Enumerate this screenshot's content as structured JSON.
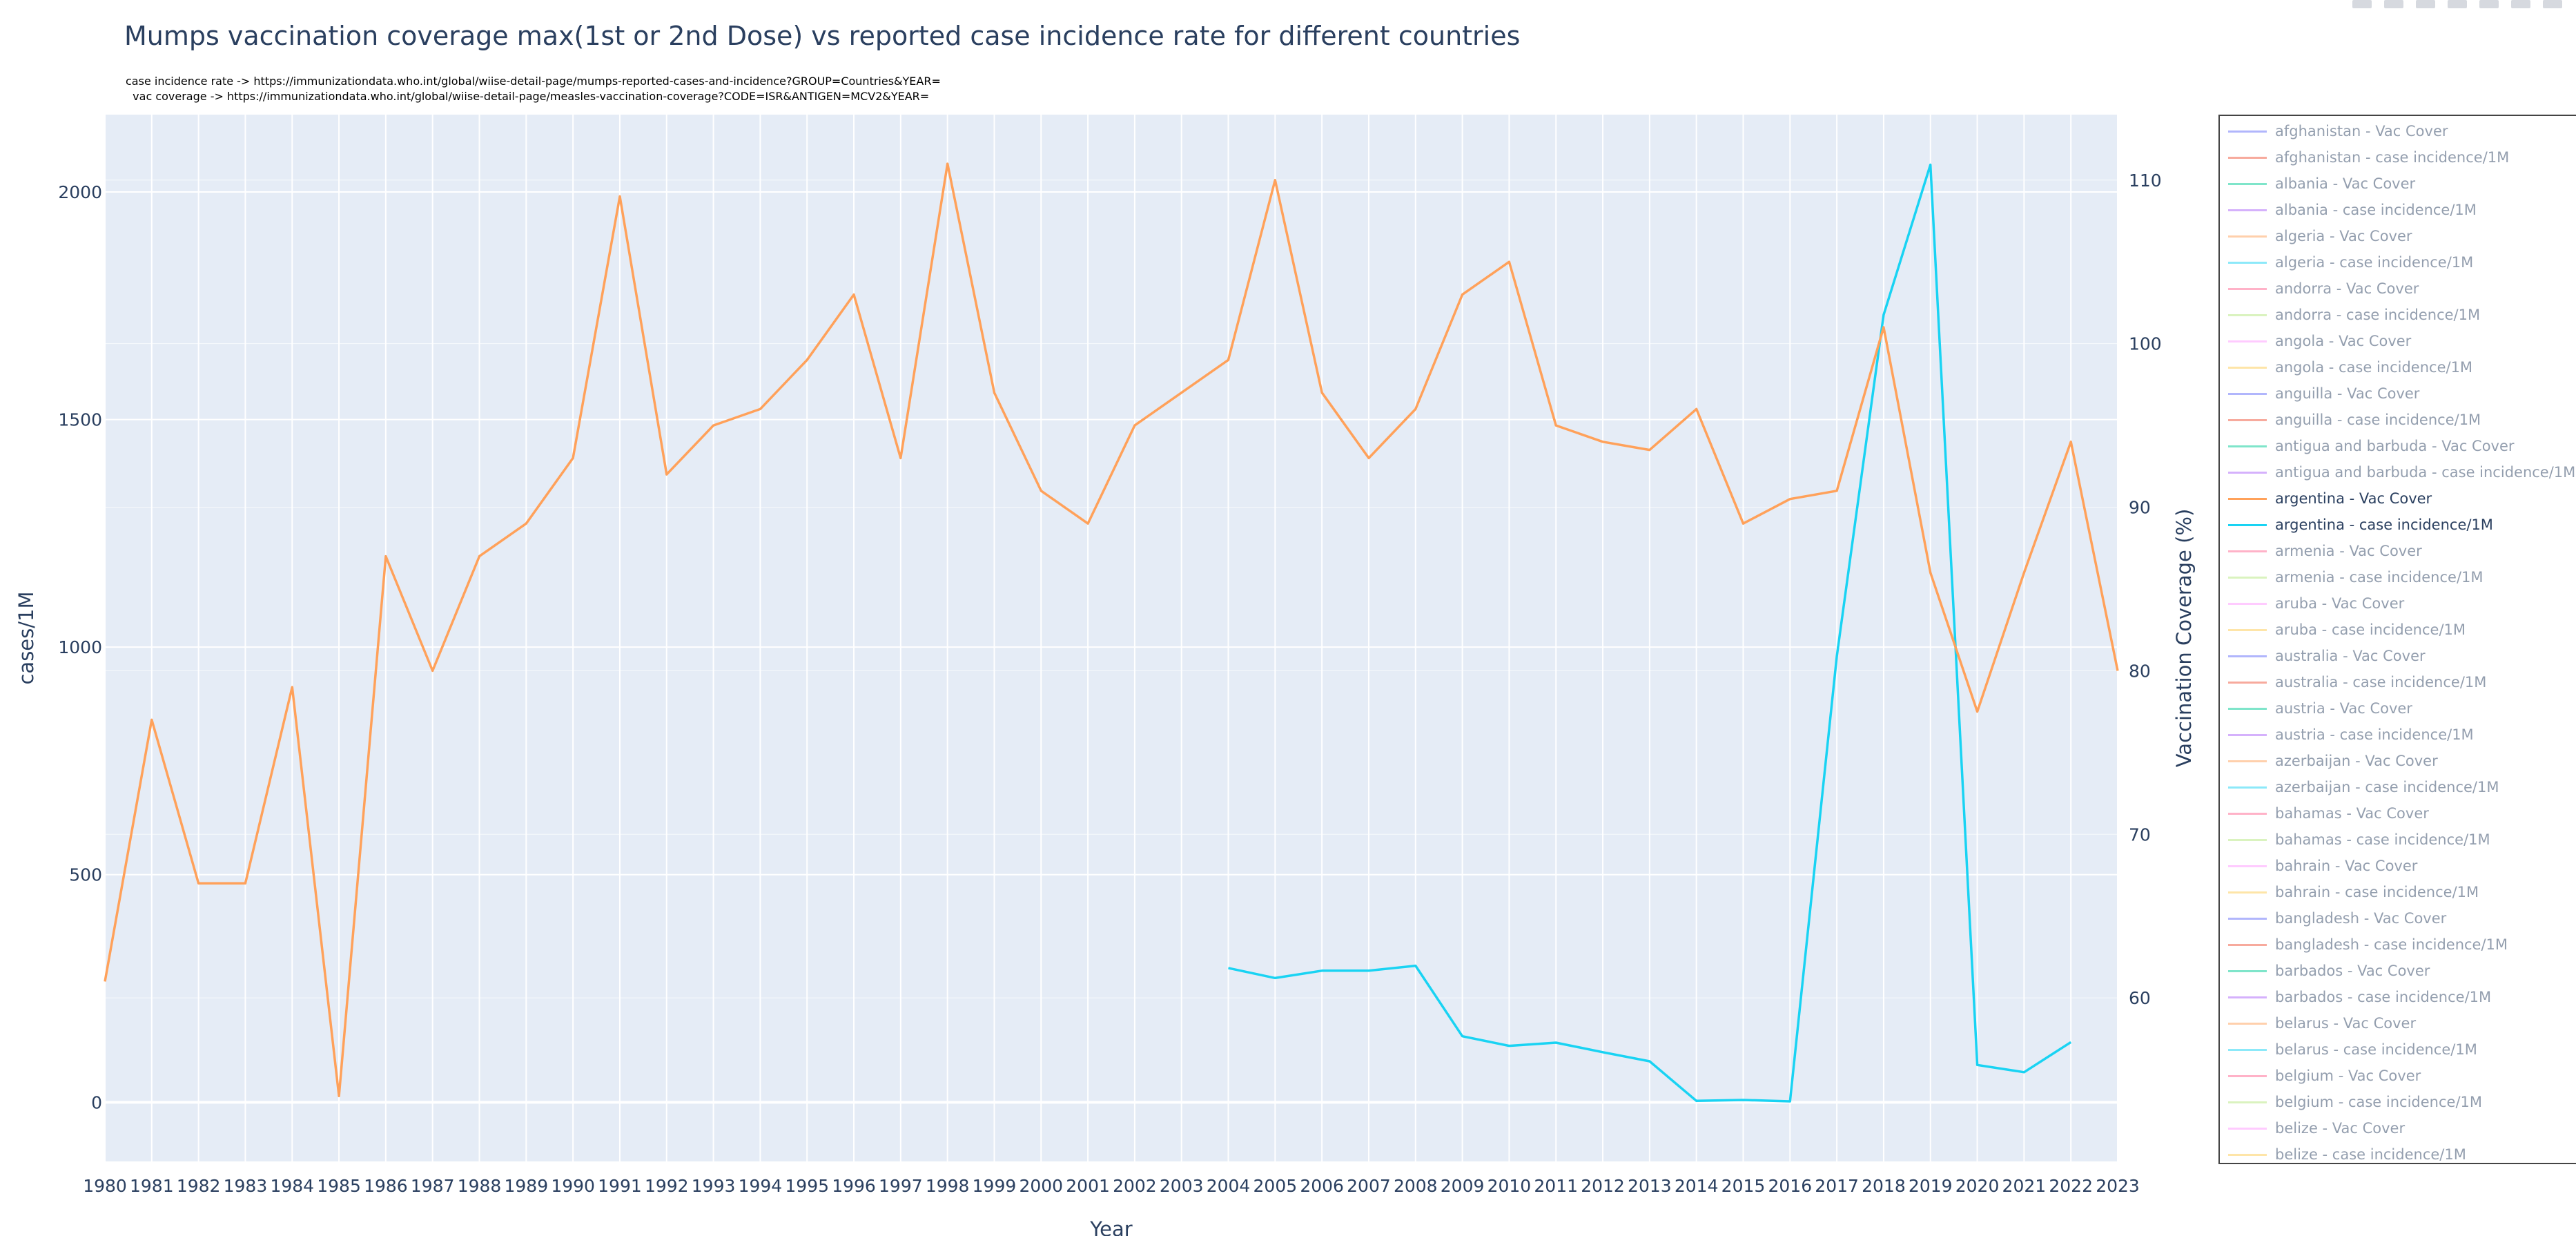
{
  "title": "Mumps vaccination coverage max(1st or 2nd Dose) vs reported case incidence rate for different countries",
  "notes": [
    "case incidence rate -> https://immunizationdata.who.int/global/wiise-detail-page/mumps-reported-cases-and-incidence?GROUP=Countries&YEAR=",
    "  vac coverage -> https://immunizationdata.who.int/global/wiise-detail-page/measles-vaccination-coverage?CODE=ISR&ANTIGEN=MCV2&YEAR="
  ],
  "chart_data": {
    "type": "line",
    "title": "Mumps vaccination coverage max(1st or 2nd Dose) vs reported case incidence rate for different countries",
    "xlabel": "Year",
    "ylabel": "cases/1M",
    "y2label": "Vaccination Coverage (%)",
    "x": [
      1980,
      1981,
      1982,
      1983,
      1984,
      1985,
      1986,
      1987,
      1988,
      1989,
      1990,
      1991,
      1992,
      1993,
      1994,
      1995,
      1996,
      1997,
      1998,
      1999,
      2000,
      2001,
      2002,
      2003,
      2004,
      2005,
      2006,
      2007,
      2008,
      2009,
      2010,
      2011,
      2012,
      2013,
      2014,
      2015,
      2016,
      2017,
      2018,
      2019,
      2020,
      2021,
      2022,
      2023
    ],
    "xlim": [
      1980,
      2023
    ],
    "ylim": [
      -130,
      2170
    ],
    "y2lim": [
      50,
      114
    ],
    "yticks": [
      0,
      500,
      1000,
      1500,
      2000
    ],
    "y2ticks": [
      60,
      70,
      80,
      90,
      100,
      110
    ],
    "grid": true,
    "legend_position": "right",
    "series": [
      {
        "name": "argentina - case incidence/1M",
        "axis": "y",
        "color": "#19d3f3",
        "x": [
          2004,
          2005,
          2006,
          2007,
          2008,
          2009,
          2010,
          2011,
          2012,
          2013,
          2014,
          2015,
          2016,
          2017,
          2018,
          2019,
          2020,
          2021,
          2022
        ],
        "values": [
          295,
          273,
          289,
          289,
          300,
          145,
          124,
          131,
          110,
          90,
          3,
          5,
          2,
          980,
          1730,
          2060,
          82,
          66,
          132
        ]
      },
      {
        "name": "argentina - Vac Cover",
        "axis": "y2",
        "color": "#ffa15a",
        "x": [
          1980,
          1981,
          1982,
          1983,
          1984,
          1985,
          1986,
          1987,
          1988,
          1989,
          1990,
          1991,
          1992,
          1993,
          1994,
          1995,
          1996,
          1997,
          1998,
          1999,
          2000,
          2001,
          2002,
          2003,
          2004,
          2005,
          2006,
          2007,
          2008,
          2009,
          2010,
          2011,
          2012,
          2013,
          2014,
          2015,
          2016,
          2017,
          2018,
          2019,
          2020,
          2021,
          2022,
          2023
        ],
        "values": [
          61,
          77,
          67,
          67,
          79,
          54,
          87,
          80,
          87,
          89,
          93,
          109,
          92,
          95,
          96,
          99,
          103,
          93,
          111,
          97,
          91,
          89,
          95,
          97,
          99,
          110,
          97,
          93,
          96,
          103,
          105,
          95,
          94,
          93.5,
          96,
          89,
          90.5,
          91,
          101,
          86,
          77.5,
          86,
          94,
          80
        ]
      }
    ]
  },
  "legend": [
    {
      "label": "afghanistan - Vac Cover",
      "color": "#636efa",
      "active": false
    },
    {
      "label": "afghanistan - case incidence/1M",
      "color": "#ef553b",
      "active": false
    },
    {
      "label": "albania - Vac Cover",
      "color": "#00cc96",
      "active": false
    },
    {
      "label": "albania - case incidence/1M",
      "color": "#ab63fa",
      "active": false
    },
    {
      "label": "algeria - Vac Cover",
      "color": "#ffa15a",
      "active": false
    },
    {
      "label": "algeria - case incidence/1M",
      "color": "#19d3f3",
      "active": false
    },
    {
      "label": "andorra - Vac Cover",
      "color": "#ff6692",
      "active": false
    },
    {
      "label": "andorra - case incidence/1M",
      "color": "#b6e880",
      "active": false
    },
    {
      "label": "angola - Vac Cover",
      "color": "#ff97ff",
      "active": false
    },
    {
      "label": "angola - case incidence/1M",
      "color": "#fecb52",
      "active": false
    },
    {
      "label": "anguilla - Vac Cover",
      "color": "#636efa",
      "active": false
    },
    {
      "label": "anguilla - case incidence/1M",
      "color": "#ef553b",
      "active": false
    },
    {
      "label": "antigua and barbuda - Vac Cover",
      "color": "#00cc96",
      "active": false
    },
    {
      "label": "antigua and barbuda - case incidence/1M",
      "color": "#ab63fa",
      "active": false
    },
    {
      "label": "argentina - Vac Cover",
      "color": "#ffa15a",
      "active": true
    },
    {
      "label": "argentina - case incidence/1M",
      "color": "#19d3f3",
      "active": true
    },
    {
      "label": "armenia - Vac Cover",
      "color": "#ff6692",
      "active": false
    },
    {
      "label": "armenia - case incidence/1M",
      "color": "#b6e880",
      "active": false
    },
    {
      "label": "aruba - Vac Cover",
      "color": "#ff97ff",
      "active": false
    },
    {
      "label": "aruba - case incidence/1M",
      "color": "#fecb52",
      "active": false
    },
    {
      "label": "australia - Vac Cover",
      "color": "#636efa",
      "active": false
    },
    {
      "label": "australia - case incidence/1M",
      "color": "#ef553b",
      "active": false
    },
    {
      "label": "austria - Vac Cover",
      "color": "#00cc96",
      "active": false
    },
    {
      "label": "austria - case incidence/1M",
      "color": "#ab63fa",
      "active": false
    },
    {
      "label": "azerbaijan - Vac Cover",
      "color": "#ffa15a",
      "active": false
    },
    {
      "label": "azerbaijan - case incidence/1M",
      "color": "#19d3f3",
      "active": false
    },
    {
      "label": "bahamas - Vac Cover",
      "color": "#ff6692",
      "active": false
    },
    {
      "label": "bahamas - case incidence/1M",
      "color": "#b6e880",
      "active": false
    },
    {
      "label": "bahrain - Vac Cover",
      "color": "#ff97ff",
      "active": false
    },
    {
      "label": "bahrain - case incidence/1M",
      "color": "#fecb52",
      "active": false
    },
    {
      "label": "bangladesh - Vac Cover",
      "color": "#636efa",
      "active": false
    },
    {
      "label": "bangladesh - case incidence/1M",
      "color": "#ef553b",
      "active": false
    },
    {
      "label": "barbados - Vac Cover",
      "color": "#00cc96",
      "active": false
    },
    {
      "label": "barbados - case incidence/1M",
      "color": "#ab63fa",
      "active": false
    },
    {
      "label": "belarus - Vac Cover",
      "color": "#ffa15a",
      "active": false
    },
    {
      "label": "belarus - case incidence/1M",
      "color": "#19d3f3",
      "active": false
    },
    {
      "label": "belgium - Vac Cover",
      "color": "#ff6692",
      "active": false
    },
    {
      "label": "belgium - case incidence/1M",
      "color": "#b6e880",
      "active": false
    },
    {
      "label": "belize - Vac Cover",
      "color": "#ff97ff",
      "active": false
    },
    {
      "label": "belize - case incidence/1M",
      "color": "#fecb52",
      "active": false
    }
  ]
}
